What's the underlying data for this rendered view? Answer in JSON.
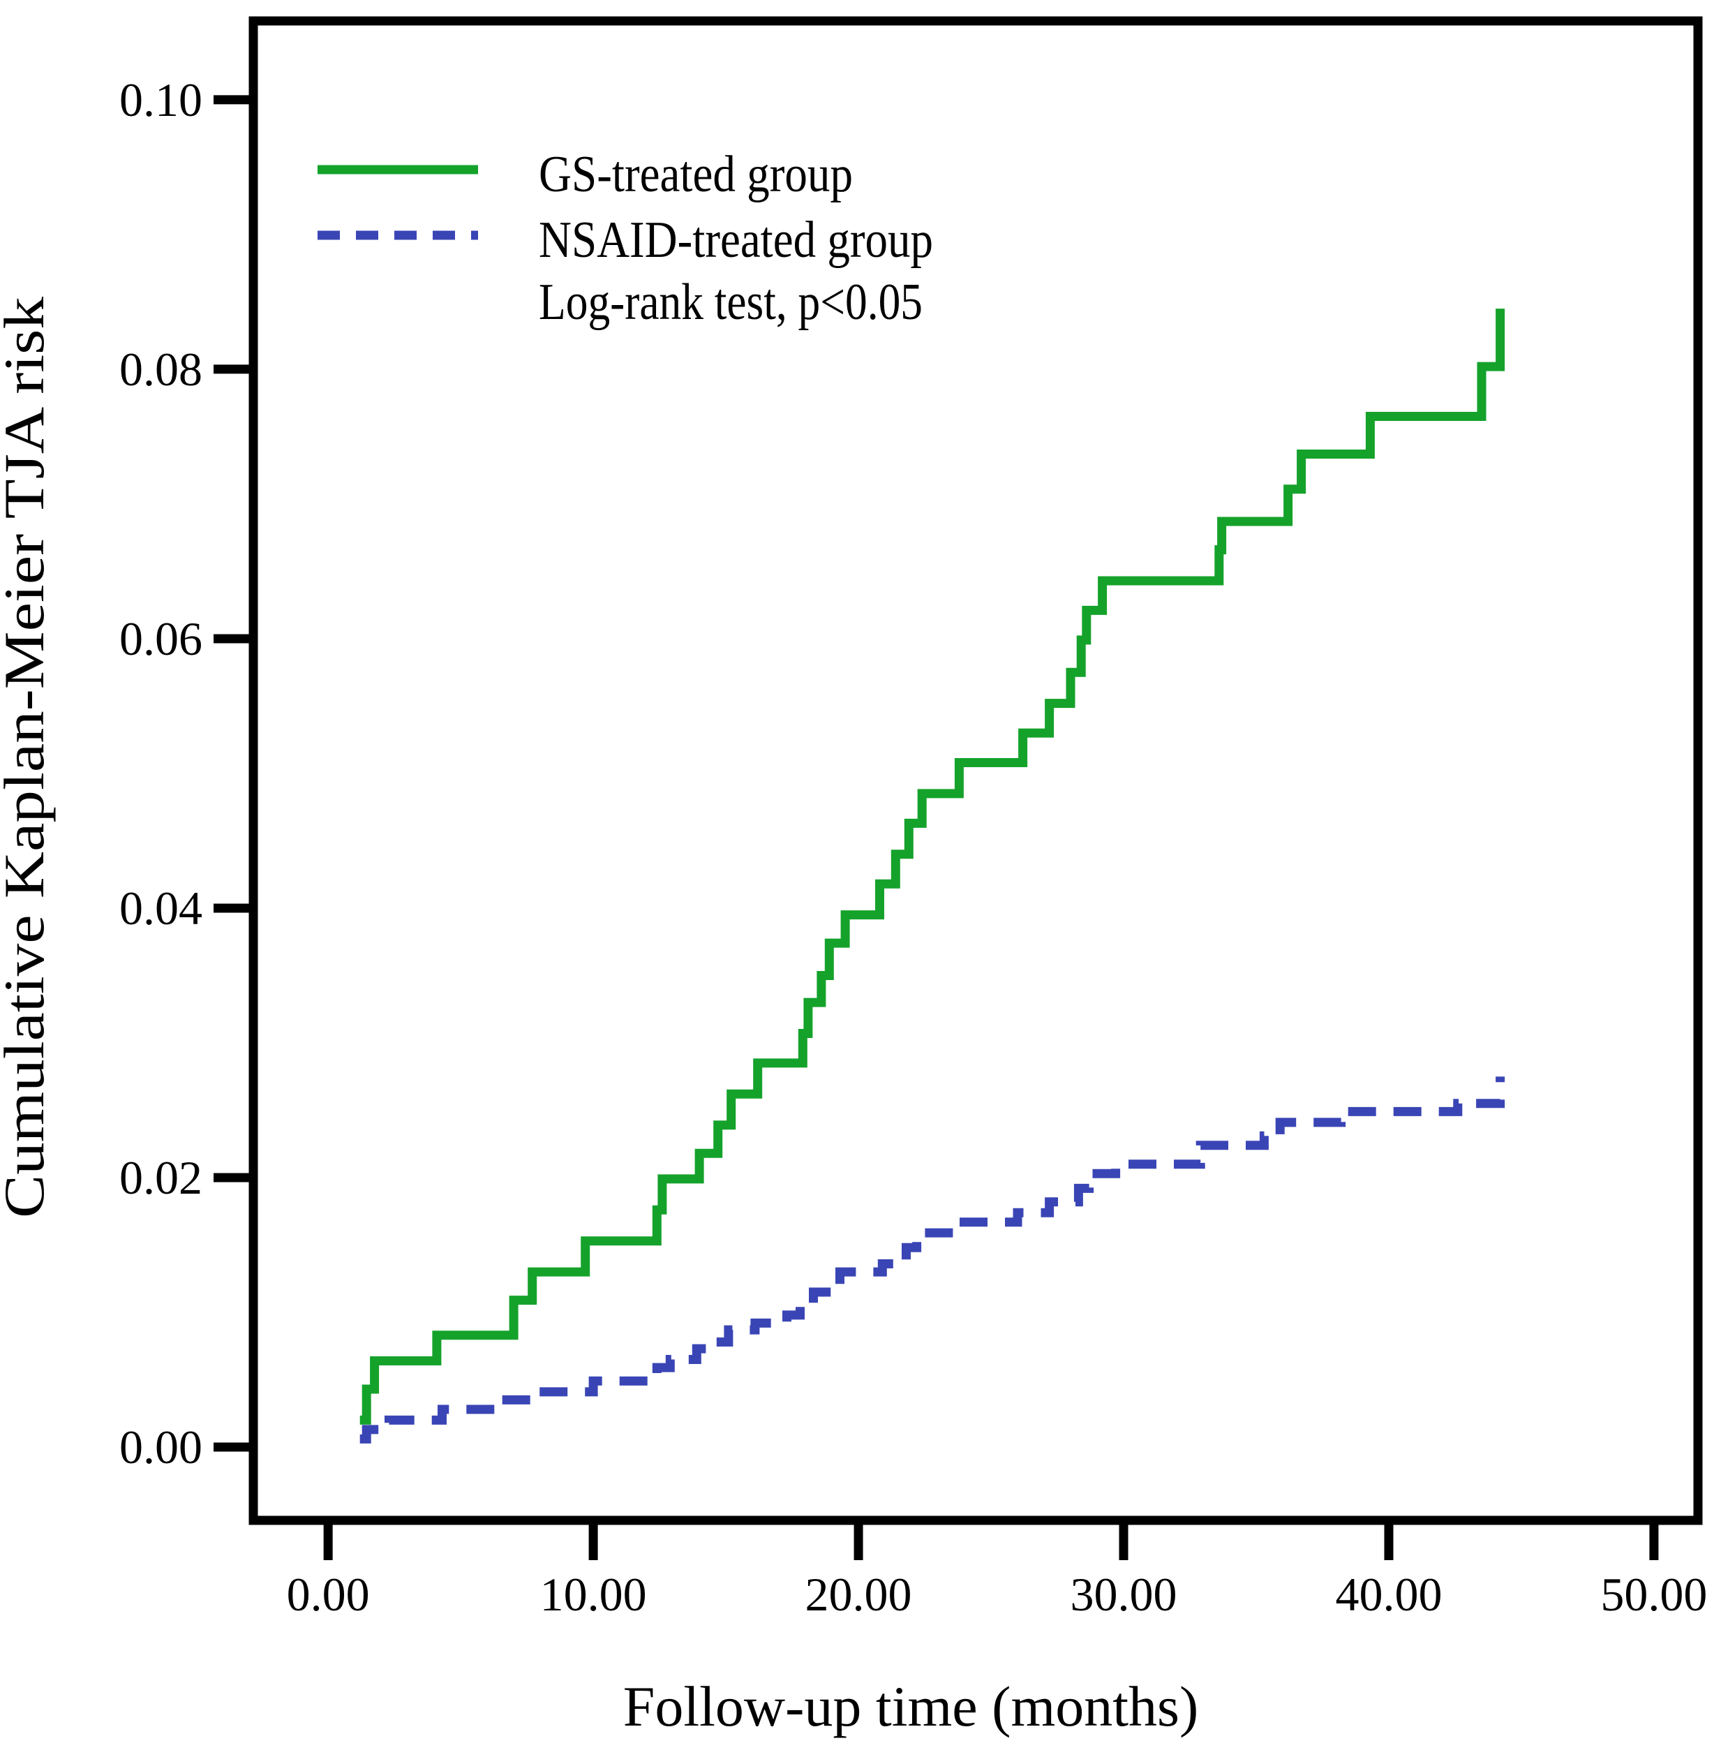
{
  "chart_data": {
    "type": "line",
    "subtype": "kaplan-meier-step",
    "title": "",
    "xlabel": "Follow-up time (months)",
    "ylabel": "Cumulative Kaplan-Meier TJA risk",
    "annotation": "Log-rank test, p<0.05",
    "grid": false,
    "legend_position": "upper-left-inside",
    "xlim": [
      -2.82,
      51.66
    ],
    "ylim": [
      -0.00544,
      0.10585
    ],
    "x_ticks": {
      "values": [
        0,
        10,
        20,
        30,
        40,
        50
      ],
      "labels": [
        "0.00",
        "10.00",
        "20.00",
        "30.00",
        "40.00",
        "50.00"
      ]
    },
    "y_ticks": {
      "values": [
        0.0,
        0.02,
        0.04,
        0.06,
        0.08,
        0.1
      ],
      "labels": [
        "0.00",
        "0.02",
        "0.04",
        "0.06",
        "0.08",
        "0.10"
      ]
    },
    "series": [
      {
        "name": "GS-treated group",
        "color": "#15a22b",
        "line_style": "solid",
        "steps": [
          [
            1.2,
            0.002
          ],
          [
            1.45,
            0.0043
          ],
          [
            1.75,
            0.0064
          ],
          [
            4.1,
            0.0083
          ],
          [
            7.0,
            0.0109
          ],
          [
            7.7,
            0.013
          ],
          [
            9.7,
            0.0153
          ],
          [
            12.4,
            0.0176
          ],
          [
            12.6,
            0.0199
          ],
          [
            14.0,
            0.0218
          ],
          [
            14.7,
            0.0239
          ],
          [
            15.2,
            0.0262
          ],
          [
            16.2,
            0.0285
          ],
          [
            17.9,
            0.0307
          ],
          [
            18.1,
            0.033
          ],
          [
            18.6,
            0.035
          ],
          [
            18.9,
            0.0374
          ],
          [
            19.5,
            0.0395
          ],
          [
            20.8,
            0.0418
          ],
          [
            21.4,
            0.044
          ],
          [
            21.9,
            0.0463
          ],
          [
            22.4,
            0.0485
          ],
          [
            23.8,
            0.0508
          ],
          [
            26.2,
            0.053
          ],
          [
            27.2,
            0.0552
          ],
          [
            28.0,
            0.0575
          ],
          [
            28.4,
            0.0599
          ],
          [
            28.6,
            0.0621
          ],
          [
            29.2,
            0.0643
          ],
          [
            33.6,
            0.0666
          ],
          [
            33.7,
            0.0687
          ],
          [
            36.2,
            0.0711
          ],
          [
            36.7,
            0.0737
          ],
          [
            39.3,
            0.0765
          ],
          [
            43.5,
            0.0802
          ],
          [
            44.2,
            0.0845
          ]
        ]
      },
      {
        "name": "NSAID-treated group",
        "color": "#3a45b5",
        "line_style": "dashed",
        "steps": [
          [
            1.2,
            0.0006
          ],
          [
            1.45,
            0.0013
          ],
          [
            2.3,
            0.002
          ],
          [
            4.3,
            0.0028
          ],
          [
            6.5,
            0.0035
          ],
          [
            7.9,
            0.0041
          ],
          [
            10.0,
            0.0049
          ],
          [
            12.4,
            0.0059
          ],
          [
            12.9,
            0.0065
          ],
          [
            13.9,
            0.0073
          ],
          [
            14.4,
            0.0078
          ],
          [
            15.1,
            0.0087
          ],
          [
            16.1,
            0.0092
          ],
          [
            17.3,
            0.0098
          ],
          [
            17.8,
            0.0105
          ],
          [
            18.3,
            0.0115
          ],
          [
            19.3,
            0.013
          ],
          [
            20.9,
            0.0136
          ],
          [
            21.8,
            0.0148
          ],
          [
            22.2,
            0.0159
          ],
          [
            23.8,
            0.0167
          ],
          [
            26.0,
            0.0174
          ],
          [
            27.2,
            0.0182
          ],
          [
            28.3,
            0.0192
          ],
          [
            28.7,
            0.0203
          ],
          [
            29.7,
            0.021
          ],
          [
            32.9,
            0.0224
          ],
          [
            35.3,
            0.0231
          ],
          [
            35.9,
            0.0241
          ],
          [
            38.2,
            0.0249
          ],
          [
            42.6,
            0.0255
          ],
          [
            44.2,
            0.0275
          ]
        ]
      }
    ]
  }
}
